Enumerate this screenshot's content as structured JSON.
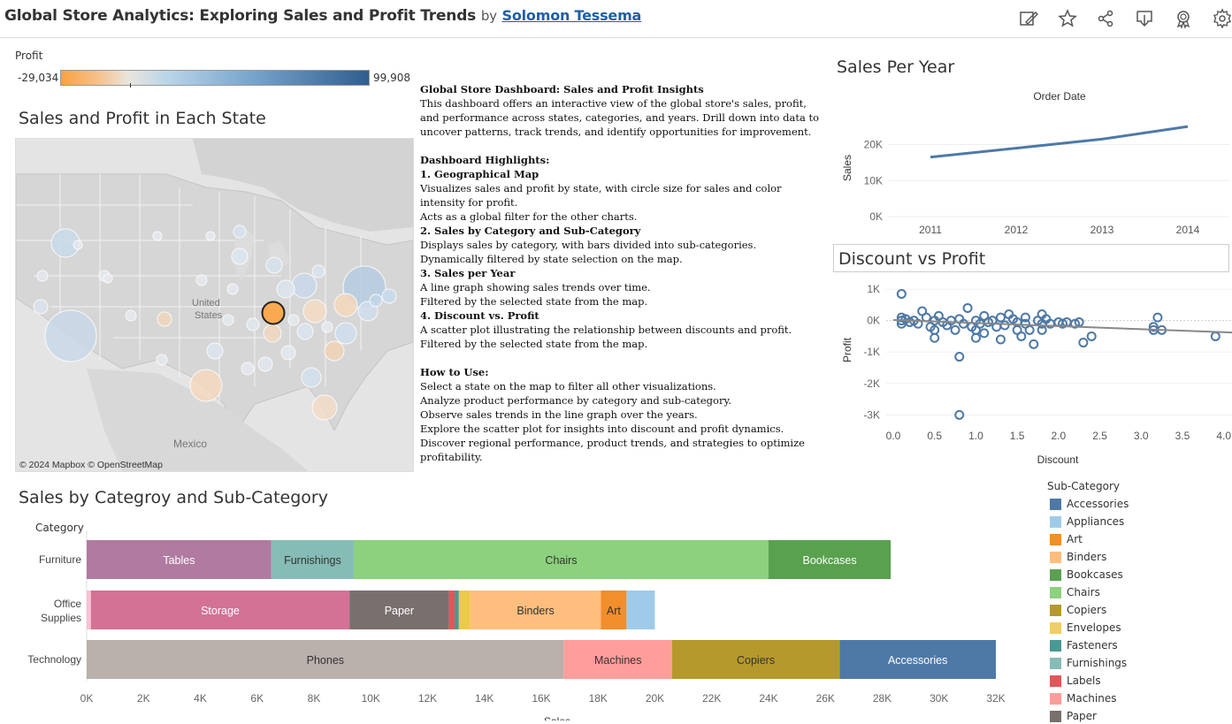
{
  "header": {
    "title": "Global Store Analytics: Exploring Sales and Profit Trends",
    "by": "by",
    "author": "Solomon Tessema",
    "icons": [
      "edit-icon",
      "favorite-star-icon",
      "share-icon",
      "download-icon",
      "badge-icon",
      "settings-gear-icon"
    ]
  },
  "profit_legend": {
    "title": "Profit",
    "min": "-29,034",
    "max": "99,908"
  },
  "map_section": {
    "title": "Sales and Profit in Each State",
    "labels": {
      "country": "United\nStates",
      "mexico": "Mexico",
      "attribution": "© 2024 Mapbox  © OpenStreetMap"
    }
  },
  "description": {
    "heading": "Global Store Dashboard: Sales and Profit Insights",
    "intro": "This dashboard offers an interactive view of the global store's sales, profit, and performance across states, categories, and years. Drill down into data to uncover patterns, track trends, and identify opportunities for improvement.",
    "highlights_heading": "Dashboard Highlights:",
    "h1": "1. Geographical Map",
    "h1_l1": "Visualizes sales and profit by state, with circle size for sales and color intensity for profit.",
    "h1_l2": "Acts as a global filter for the other charts.",
    "h2": "2. Sales by Category and Sub-Category",
    "h2_l1": "Displays sales by category, with bars divided into sub-categories.",
    "h2_l2": "Dynamically filtered by state selection on the map.",
    "h3": "3. Sales per Year",
    "h3_l1": "A line graph showing sales trends over time.",
    "h3_l2": "Filtered by the selected state from the map.",
    "h4": "4. Discount vs. Profit",
    "h4_l1": "A scatter plot illustrating the relationship between discounts and profit.",
    "h4_l2": "Filtered by the selected state from the map.",
    "howto_heading": "How to Use:",
    "howto": [
      "Select a state on the map to filter all other visualizations.",
      "Analyze product performance by category and sub-category.",
      "Observe sales trends in the line graph over the years.",
      "Explore the scatter plot for insights into discount and profit dynamics.",
      "Discover regional performance, product trends, and strategies to optimize profitability."
    ]
  },
  "chart_data": [
    {
      "type": "line",
      "title": "Sales Per Year",
      "xlabel": "Order Date",
      "ylabel": "Sales",
      "x": [
        "2011",
        "2012",
        "2013",
        "2014"
      ],
      "values": [
        16500,
        19000,
        21500,
        25000
      ],
      "yticks": [
        "0K",
        "10K",
        "20K"
      ],
      "ylim": [
        0,
        27000
      ],
      "color": "#4e79a7"
    },
    {
      "type": "scatter",
      "title": "Discount vs Profit",
      "xlabel": "Discount",
      "ylabel": "Profit",
      "xticks": [
        "0.0",
        "0.5",
        "1.0",
        "1.5",
        "2.0",
        "2.5",
        "3.0",
        "3.5",
        "4.0"
      ],
      "yticks": [
        "1K",
        "0K",
        "-1K",
        "-2K",
        "-3K"
      ],
      "xlim": [
        0,
        4.1
      ],
      "ylim": [
        -3300,
        1200
      ],
      "trend": [
        [
          0,
          20
        ],
        [
          4.1,
          -380
        ]
      ],
      "points": [
        [
          0.1,
          850
        ],
        [
          0.1,
          100
        ],
        [
          0.1,
          0
        ],
        [
          0.1,
          -100
        ],
        [
          0.15,
          50
        ],
        [
          0.2,
          -50
        ],
        [
          0.25,
          0
        ],
        [
          0.3,
          -100
        ],
        [
          0.35,
          300
        ],
        [
          0.4,
          100
        ],
        [
          0.45,
          -200
        ],
        [
          0.5,
          -300
        ],
        [
          0.5,
          -550
        ],
        [
          0.5,
          0
        ],
        [
          0.55,
          150
        ],
        [
          0.6,
          -50
        ],
        [
          0.65,
          -150
        ],
        [
          0.7,
          0
        ],
        [
          0.75,
          -300
        ],
        [
          0.8,
          50
        ],
        [
          0.8,
          -1150
        ],
        [
          0.8,
          -3000
        ],
        [
          0.85,
          -100
        ],
        [
          0.9,
          400
        ],
        [
          0.95,
          -200
        ],
        [
          1.0,
          0
        ],
        [
          1.0,
          -300
        ],
        [
          1.0,
          -550
        ],
        [
          1.05,
          -100
        ],
        [
          1.1,
          150
        ],
        [
          1.1,
          -400
        ],
        [
          1.15,
          -50
        ],
        [
          1.2,
          0
        ],
        [
          1.25,
          -200
        ],
        [
          1.3,
          100
        ],
        [
          1.3,
          -600
        ],
        [
          1.35,
          -150
        ],
        [
          1.4,
          200
        ],
        [
          1.45,
          50
        ],
        [
          1.5,
          -50
        ],
        [
          1.5,
          -300
        ],
        [
          1.55,
          -500
        ],
        [
          1.6,
          100
        ],
        [
          1.6,
          -100
        ],
        [
          1.65,
          -300
        ],
        [
          1.7,
          -750
        ],
        [
          1.75,
          0
        ],
        [
          1.8,
          200
        ],
        [
          1.8,
          -100
        ],
        [
          1.8,
          -300
        ],
        [
          1.85,
          50
        ],
        [
          1.9,
          -100
        ],
        [
          2.0,
          -50
        ],
        [
          2.05,
          -100
        ],
        [
          2.1,
          -50
        ],
        [
          2.2,
          -100
        ],
        [
          2.25,
          -50
        ],
        [
          2.3,
          -700
        ],
        [
          2.4,
          -500
        ],
        [
          3.15,
          -200
        ],
        [
          3.15,
          -300
        ],
        [
          3.2,
          100
        ],
        [
          3.25,
          -300
        ],
        [
          3.9,
          -500
        ]
      ],
      "color": "#4e79a7"
    },
    {
      "type": "bar",
      "title": "Sales by Categroy and Sub-Category",
      "category_header": "Category",
      "xlabel": "Sales",
      "xticks": [
        "0K",
        "2K",
        "4K",
        "6K",
        "8K",
        "10K",
        "12K",
        "14K",
        "16K",
        "18K",
        "20K",
        "22K",
        "24K",
        "26K",
        "28K",
        "30K",
        "32K"
      ],
      "xlim": [
        0,
        32000
      ],
      "categories": [
        {
          "name": "Furniture",
          "segments": [
            {
              "sub": "Tables",
              "value": 6500,
              "color": "#b07aa1",
              "label": "Tables"
            },
            {
              "sub": "Furnishings",
              "value": 2900,
              "color": "#86bcb6",
              "label": "Furnishings"
            },
            {
              "sub": "Chairs",
              "value": 14600,
              "color": "#8cd17d",
              "label": "Chairs"
            },
            {
              "sub": "Bookcases",
              "value": 4300,
              "color": "#59a14f",
              "label": "Bookcases"
            }
          ]
        },
        {
          "name": "Office Supplies",
          "segments": [
            {
              "sub": "Paper-pink",
              "value": 150,
              "color": "#fabfd2",
              "label": ""
            },
            {
              "sub": "Storage",
              "value": 9100,
              "color": "#d37295",
              "label": "Storage"
            },
            {
              "sub": "Paper",
              "value": 3500,
              "color": "#79706e",
              "label": "Paper"
            },
            {
              "sub": "Labels",
              "value": 200,
              "color": "#e15759",
              "label": ""
            },
            {
              "sub": "Fasteners",
              "value": 150,
              "color": "#499894",
              "label": ""
            },
            {
              "sub": "Envelopes",
              "value": 400,
              "color": "#edc948",
              "label": ""
            },
            {
              "sub": "Binders",
              "value": 4600,
              "color": "#ffbe7d",
              "label": "Binders"
            },
            {
              "sub": "Art",
              "value": 900,
              "color": "#f28e2b",
              "label": "Art"
            },
            {
              "sub": "Appliances",
              "value": 1000,
              "color": "#a0cbe8",
              "label": ""
            }
          ]
        },
        {
          "name": "Technology",
          "segments": [
            {
              "sub": "Phones",
              "value": 16800,
              "color": "#bab0ac",
              "label": "Phones"
            },
            {
              "sub": "Machines",
              "value": 3800,
              "color": "#ff9d9a",
              "label": "Machines"
            },
            {
              "sub": "Copiers",
              "value": 5900,
              "color": "#b6992d",
              "label": "Copiers"
            },
            {
              "sub": "Accessories",
              "value": 5500,
              "color": "#4e79a7",
              "label": "Accessories"
            }
          ]
        }
      ]
    }
  ],
  "subcategory_legend": {
    "title": "Sub-Category",
    "items": [
      {
        "label": "Accessories",
        "color": "#4e79a7"
      },
      {
        "label": "Appliances",
        "color": "#a0cbe8"
      },
      {
        "label": "Art",
        "color": "#f28e2b"
      },
      {
        "label": "Binders",
        "color": "#ffbe7d"
      },
      {
        "label": "Bookcases",
        "color": "#59a14f"
      },
      {
        "label": "Chairs",
        "color": "#8cd17d"
      },
      {
        "label": "Copiers",
        "color": "#b6992d"
      },
      {
        "label": "Envelopes",
        "color": "#f1ce63"
      },
      {
        "label": "Fasteners",
        "color": "#499894"
      },
      {
        "label": "Furnishings",
        "color": "#86bcb6"
      },
      {
        "label": "Labels",
        "color": "#e15759"
      },
      {
        "label": "Machines",
        "color": "#ff9d9a"
      },
      {
        "label": "Paper",
        "color": "#79706e"
      }
    ]
  }
}
